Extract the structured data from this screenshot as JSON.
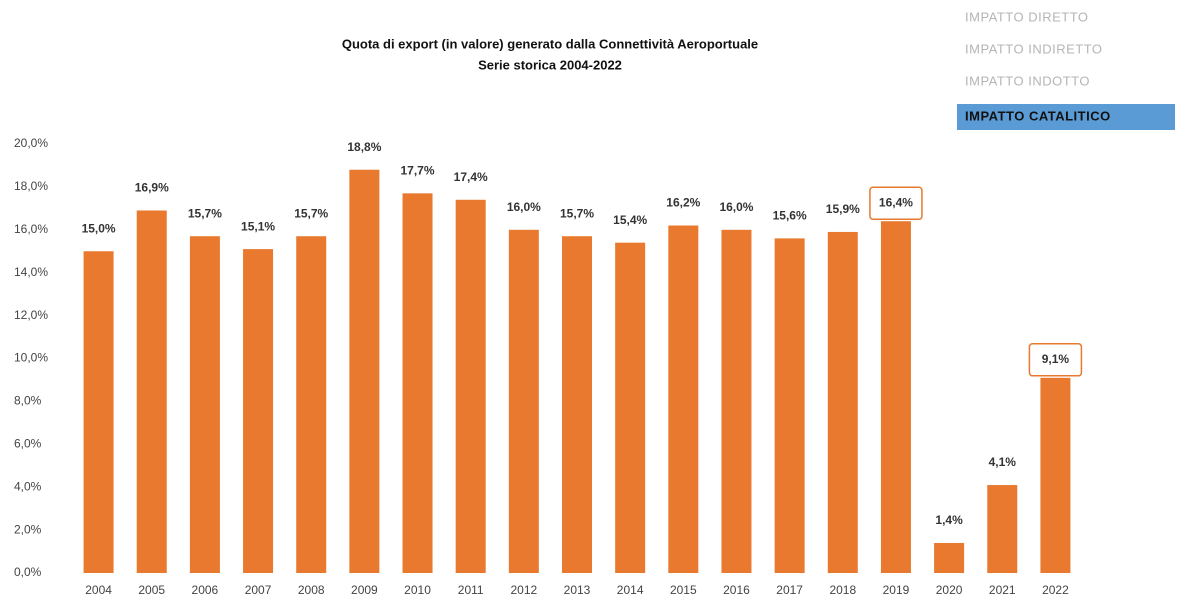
{
  "chart_data": {
    "type": "bar",
    "title": "Quota di export (in valore) generato dalla Connettività Aeroportuale",
    "subtitle": "Serie storica 2004-2022",
    "categories": [
      "2004",
      "2005",
      "2006",
      "2007",
      "2008",
      "2009",
      "2010",
      "2011",
      "2012",
      "2013",
      "2014",
      "2015",
      "2016",
      "2017",
      "2018",
      "2019",
      "2020",
      "2021",
      "2022"
    ],
    "values": [
      15.0,
      16.9,
      15.7,
      15.1,
      15.7,
      18.8,
      17.7,
      17.4,
      16.0,
      15.7,
      15.4,
      16.2,
      16.0,
      15.6,
      15.9,
      16.4,
      1.4,
      4.1,
      9.1
    ],
    "value_labels": [
      "15,0%",
      "16,9%",
      "15,7%",
      "15,1%",
      "15,7%",
      "18,8%",
      "17,7%",
      "17,4%",
      "16,0%",
      "15,7%",
      "15,4%",
      "16,2%",
      "16,0%",
      "15,6%",
      "15,9%",
      "16,4%",
      "1,4%",
      "4,1%",
      "9,1%"
    ],
    "color": "#e8792e",
    "ylim": [
      0,
      20
    ],
    "yticks": [
      {
        "value": 0,
        "label": "0,0%"
      },
      {
        "value": 2,
        "label": "2,0%"
      },
      {
        "value": 4,
        "label": "4,0%"
      },
      {
        "value": 6,
        "label": "6,0%"
      },
      {
        "value": 8,
        "label": "8,0%"
      },
      {
        "value": 10,
        "label": "10,0%"
      },
      {
        "value": 12,
        "label": "12,0%"
      },
      {
        "value": 14,
        "label": "14,0%"
      },
      {
        "value": 16,
        "label": "16,0%"
      },
      {
        "value": 18,
        "label": "18,0%"
      },
      {
        "value": 20,
        "label": "20,0%"
      }
    ],
    "grid": false,
    "highlight": [
      "2019",
      "2022"
    ]
  },
  "menu": {
    "items": [
      "IMPATTO DIRETTO",
      "IMPATTO INDIRETTO",
      "IMPATTO INDOTTO",
      "IMPATTO CATALITICO"
    ],
    "active": "IMPATTO CATALITICO"
  }
}
